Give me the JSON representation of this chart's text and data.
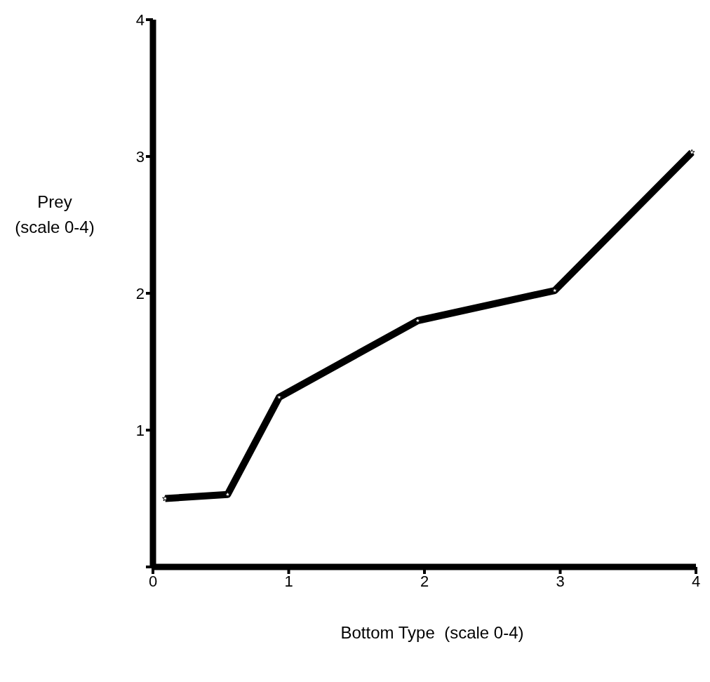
{
  "chart_data": {
    "type": "line",
    "xlabel": "Bottom Type  (scale 0-4)",
    "ylabel": "Prey (scale 0-4)",
    "x": [
      0.09,
      0.55,
      0.93,
      1.95,
      2.96,
      3.97
    ],
    "series": [
      {
        "color": "#000000",
        "values": [
          0.5,
          0.53,
          1.24,
          1.8,
          2.02,
          3.03
        ]
      }
    ],
    "xlim": [
      0,
      4
    ],
    "xticks": [
      0,
      1,
      2,
      3,
      4
    ],
    "ylim": [
      0,
      4
    ],
    "yticks": [
      {
        "value": 0,
        "label": null
      },
      1,
      2,
      3,
      4
    ],
    "grid": false,
    "legend": false,
    "marker": "star",
    "line_style": "solid"
  }
}
